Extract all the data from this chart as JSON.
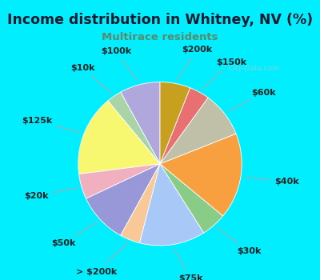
{
  "title": "Income distribution in Whitney, NV (%)",
  "subtitle": "Multirace residents",
  "title_color": "#1a1a2e",
  "subtitle_color": "#5a8a6a",
  "bg_cyan": "#00eeff",
  "chart_bg": "#e8f5ef",
  "watermark": "City-Data.com",
  "labels": [
    "$100k",
    "$10k",
    "$125k",
    "$20k",
    "$50k",
    "> $200k",
    "$75k",
    "$30k",
    "$40k",
    "$60k",
    "$150k",
    "$200k"
  ],
  "values": [
    8.0,
    3.0,
    16.0,
    5.0,
    10.0,
    4.0,
    13.0,
    5.0,
    17.0,
    9.0,
    4.0,
    6.0
  ],
  "colors": [
    "#b0a8dc",
    "#a8d4a8",
    "#f8f870",
    "#f0b0c0",
    "#9898d8",
    "#f8c898",
    "#a8c8f8",
    "#88cc88",
    "#f8a040",
    "#c0c0a8",
    "#e87070",
    "#c8a020"
  ],
  "label_fontsize": 8,
  "title_fontsize": 12.5,
  "subtitle_fontsize": 9.5,
  "startangle": 90,
  "figsize": [
    4.0,
    3.5
  ],
  "dpi": 100
}
